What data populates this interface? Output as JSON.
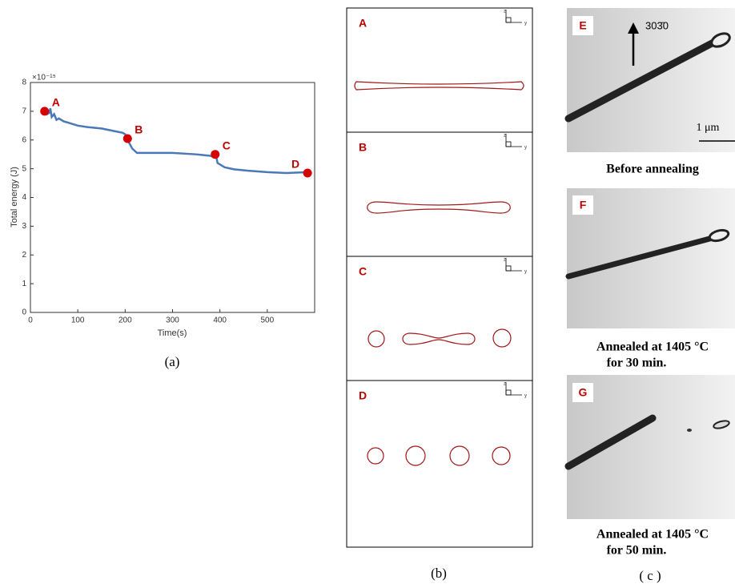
{
  "chart_data": {
    "type": "line",
    "title_multiplier": "×10⁻¹⁵",
    "x_label": "Time(s)",
    "y_label": "Total energy (J)",
    "caption": "(a)",
    "xlim": [
      0,
      600
    ],
    "xticks": [
      0,
      100,
      200,
      300,
      400,
      500
    ],
    "ylim": [
      0,
      8
    ],
    "yticks": [
      0,
      1,
      2,
      3,
      4,
      5,
      6,
      7,
      8
    ],
    "series": [
      {
        "color": "#4a78b8",
        "x": [
          30,
          35,
          40,
          42,
          45,
          50,
          55,
          60,
          70,
          80,
          100,
          120,
          150,
          180,
          195,
          200,
          205,
          215,
          225,
          240,
          260,
          300,
          350,
          380,
          388,
          390,
          395,
          410,
          430,
          460,
          500,
          540,
          570,
          590
        ],
        "values": [
          7.0,
          6.9,
          6.95,
          7.1,
          6.8,
          6.9,
          6.7,
          6.75,
          6.65,
          6.6,
          6.5,
          6.45,
          6.4,
          6.3,
          6.25,
          6.2,
          6.0,
          5.7,
          5.55,
          5.55,
          5.55,
          5.55,
          5.5,
          5.45,
          5.4,
          5.6,
          5.2,
          5.05,
          4.98,
          4.93,
          4.88,
          4.85,
          4.87,
          4.88
        ]
      }
    ],
    "markers": {
      "color": "#d40000",
      "labels": [
        "A",
        "B",
        "C",
        "D"
      ],
      "x": [
        30,
        205,
        390,
        585
      ],
      "values": [
        7.0,
        6.05,
        5.5,
        4.85
      ]
    }
  },
  "panel_b": {
    "caption": "(b)",
    "labels": [
      "A",
      "B",
      "C",
      "D"
    ],
    "axis_z": "z",
    "axis_y": "y"
  },
  "panel_c": {
    "caption": "( c )",
    "labels": [
      "E",
      "F",
      "G"
    ],
    "direction": "303̄0",
    "scale": "1 μm",
    "captions": [
      [
        "Before annealing"
      ],
      [
        "Annealed at 1405 °C",
        "for 30 min."
      ],
      [
        "Annealed at 1405 °C",
        "for 50 min."
      ]
    ]
  }
}
